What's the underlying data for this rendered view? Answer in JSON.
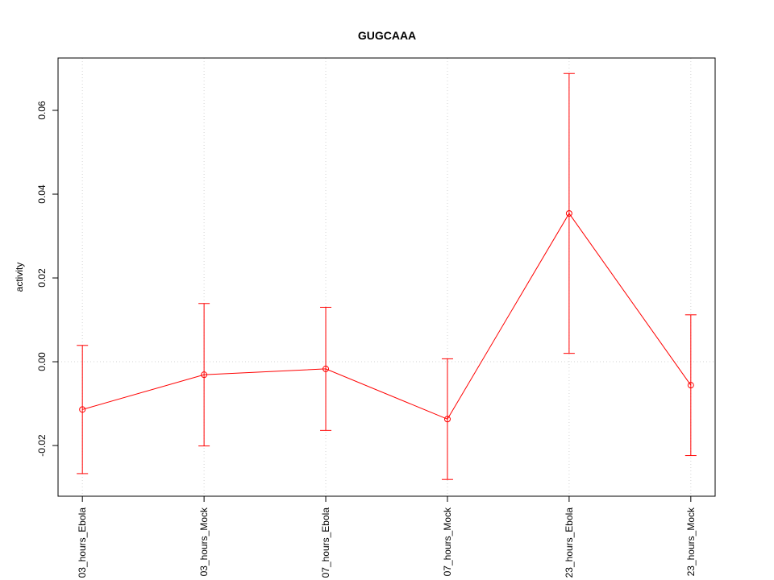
{
  "chart_data": {
    "type": "line",
    "title": "GUGCAAA",
    "y_label": "activity",
    "categories": [
      "03_hours_Ebola",
      "03_hours_Mock",
      "07_hours_Ebola",
      "07_hours_Mock",
      "23_hours_Ebola",
      "23_hours_Mock"
    ],
    "series": [
      {
        "color": "#ff0000",
        "values": [
          -0.0114,
          -0.0031,
          -0.0017,
          -0.0137,
          0.0354,
          -0.0056
        ],
        "errors": [
          0.0153,
          0.017,
          0.0147,
          0.0144,
          0.0334,
          0.0168
        ]
      }
    ],
    "ylim": [
      -0.0321,
      0.0725
    ],
    "yticks": [
      -0.02,
      {
        "value": 0,
        "label": "0.00"
      },
      0.02,
      0.04,
      0.06
    ],
    "reference_line": 0,
    "grid": true
  }
}
